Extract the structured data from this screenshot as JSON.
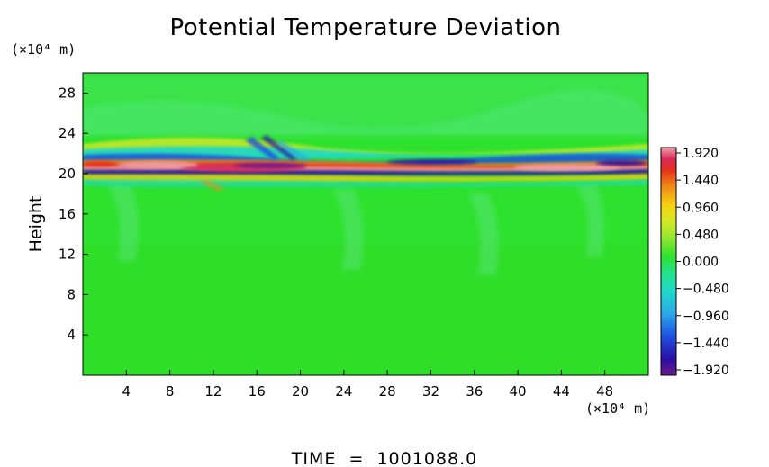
{
  "chart_data": {
    "type": "heatmap",
    "title": "Potential Temperature Deviation",
    "ylabel": "Height",
    "xlabel": "",
    "x_unit": "(×10⁴ m)",
    "y_unit": "(×10⁴ m)",
    "xlim": [
      0,
      52
    ],
    "ylim": [
      0,
      30
    ],
    "x_ticks": [
      "4",
      "8",
      "12",
      "16",
      "20",
      "24",
      "28",
      "32",
      "36",
      "40",
      "44",
      "48"
    ],
    "y_ticks": [
      "4",
      "8",
      "12",
      "16",
      "20",
      "24",
      "28"
    ],
    "colorbar": {
      "min": -1.92,
      "max": 1.92,
      "ticks": [
        "1.920",
        "1.440",
        "0.960",
        "0.480",
        "0.000",
        "−0.480",
        "−0.960",
        "−1.440",
        "−1.920"
      ],
      "colors": [
        "#6a1a8a",
        "#2a0fa5",
        "#1f4fe0",
        "#2aa8ea",
        "#1fd8c8",
        "#22e28a",
        "#2ee12e",
        "#8ee830",
        "#d8e825",
        "#f5d010",
        "#f08a18",
        "#e8301a",
        "#d82a5a",
        "#f0a0a8"
      ]
    },
    "field_description_values": {
      "background": 0.0,
      "band_center_height": 20.8,
      "band_extent_x": [
        0,
        52
      ]
    },
    "footer": "TIME  =  1001088.0"
  }
}
